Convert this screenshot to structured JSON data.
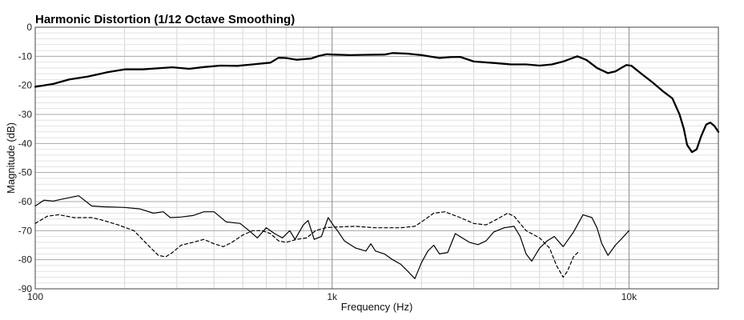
{
  "chart_data": {
    "type": "line",
    "title": "Harmonic Distortion (1/12 Octave Smoothing)",
    "xlabel": "Frequency (Hz)",
    "ylabel": "Magnitude (dB)",
    "xscale": "log",
    "xlim": [
      100,
      20000
    ],
    "ylim": [
      -90,
      0
    ],
    "grid": true,
    "x_ticks": [
      {
        "value": 100,
        "label": "100"
      },
      {
        "value": 1000,
        "label": "1k"
      },
      {
        "value": 10000,
        "label": "10k"
      }
    ],
    "y_ticks": [
      {
        "value": 0,
        "label": "0"
      },
      {
        "value": -10,
        "label": "-10"
      },
      {
        "value": -20,
        "label": "-20"
      },
      {
        "value": -30,
        "label": "-30"
      },
      {
        "value": -40,
        "label": "-40"
      },
      {
        "value": -50,
        "label": "-50"
      },
      {
        "value": -60,
        "label": "-60"
      },
      {
        "value": -70,
        "label": "-70"
      },
      {
        "value": -80,
        "label": "-80"
      },
      {
        "value": -90,
        "label": "-90"
      }
    ],
    "series": [
      {
        "style": "thick-solid",
        "color": "#000000",
        "points": [
          [
            100,
            -20.5
          ],
          [
            115,
            -19.5
          ],
          [
            130,
            -18
          ],
          [
            150,
            -17
          ],
          [
            175,
            -15.5
          ],
          [
            200,
            -14.5
          ],
          [
            230,
            -14.5
          ],
          [
            270,
            -14
          ],
          [
            290,
            -13.8
          ],
          [
            330,
            -14.3
          ],
          [
            370,
            -13.7
          ],
          [
            420,
            -13.2
          ],
          [
            480,
            -13.3
          ],
          [
            540,
            -12.8
          ],
          [
            580,
            -12.5
          ],
          [
            620,
            -12.2
          ],
          [
            660,
            -10.5
          ],
          [
            700,
            -10.6
          ],
          [
            760,
            -11.2
          ],
          [
            850,
            -10.8
          ],
          [
            900,
            -9.9
          ],
          [
            960,
            -9.3
          ],
          [
            1000,
            -9.4
          ],
          [
            1150,
            -9.6
          ],
          [
            1300,
            -9.5
          ],
          [
            1500,
            -9.4
          ],
          [
            1600,
            -8.9
          ],
          [
            1800,
            -9.1
          ],
          [
            2000,
            -9.6
          ],
          [
            2300,
            -10.6
          ],
          [
            2500,
            -10.3
          ],
          [
            2700,
            -10.2
          ],
          [
            3000,
            -11.8
          ],
          [
            3500,
            -12.3
          ],
          [
            4000,
            -12.8
          ],
          [
            4500,
            -12.8
          ],
          [
            5000,
            -13.2
          ],
          [
            5500,
            -12.8
          ],
          [
            6000,
            -11.8
          ],
          [
            6700,
            -10.0
          ],
          [
            7200,
            -11.3
          ],
          [
            7800,
            -14
          ],
          [
            8500,
            -15.8
          ],
          [
            9000,
            -15.2
          ],
          [
            9500,
            -13.8
          ],
          [
            9800,
            -13.0
          ],
          [
            10200,
            -13.3
          ],
          [
            11000,
            -16
          ],
          [
            12000,
            -19
          ],
          [
            13000,
            -22
          ],
          [
            14000,
            -24.5
          ],
          [
            14800,
            -30
          ],
          [
            15300,
            -35
          ],
          [
            15700,
            -40.5
          ],
          [
            16300,
            -43
          ],
          [
            16900,
            -42
          ],
          [
            17500,
            -37.5
          ],
          [
            18200,
            -33.5
          ],
          [
            18800,
            -32.8
          ],
          [
            19400,
            -34
          ],
          [
            20000,
            -36
          ]
        ]
      },
      {
        "style": "thin-solid",
        "color": "#000000",
        "points": [
          [
            100,
            -61.5
          ],
          [
            107,
            -59.5
          ],
          [
            115,
            -59.8
          ],
          [
            125,
            -59
          ],
          [
            140,
            -58
          ],
          [
            155,
            -61.5
          ],
          [
            170,
            -61.8
          ],
          [
            200,
            -62
          ],
          [
            225,
            -62.5
          ],
          [
            250,
            -64
          ],
          [
            270,
            -63.5
          ],
          [
            285,
            -65.5
          ],
          [
            310,
            -65.3
          ],
          [
            340,
            -64.8
          ],
          [
            370,
            -63.5
          ],
          [
            400,
            -63.5
          ],
          [
            440,
            -67
          ],
          [
            490,
            -67.5
          ],
          [
            525,
            -70
          ],
          [
            560,
            -72.5
          ],
          [
            600,
            -69
          ],
          [
            640,
            -71
          ],
          [
            680,
            -72.5
          ],
          [
            720,
            -70
          ],
          [
            750,
            -73
          ],
          [
            800,
            -68
          ],
          [
            830,
            -66.5
          ],
          [
            870,
            -73
          ],
          [
            920,
            -72
          ],
          [
            970,
            -65.5
          ],
          [
            1000,
            -67.5
          ],
          [
            1050,
            -70.5
          ],
          [
            1100,
            -73.5
          ],
          [
            1200,
            -76
          ],
          [
            1300,
            -77
          ],
          [
            1350,
            -74.5
          ],
          [
            1400,
            -77
          ],
          [
            1500,
            -78
          ],
          [
            1600,
            -80
          ],
          [
            1700,
            -81.5
          ],
          [
            1800,
            -84
          ],
          [
            1900,
            -86.5
          ],
          [
            2000,
            -81
          ],
          [
            2100,
            -77
          ],
          [
            2200,
            -75
          ],
          [
            2300,
            -78
          ],
          [
            2450,
            -77.5
          ],
          [
            2600,
            -71
          ],
          [
            2900,
            -74
          ],
          [
            3100,
            -74.8
          ],
          [
            3300,
            -73.5
          ],
          [
            3500,
            -70.5
          ],
          [
            3800,
            -69
          ],
          [
            4100,
            -68.5
          ],
          [
            4300,
            -72
          ],
          [
            4500,
            -78
          ],
          [
            4700,
            -80.5
          ],
          [
            5000,
            -76
          ],
          [
            5300,
            -73.5
          ],
          [
            5600,
            -72
          ],
          [
            6000,
            -75.5
          ],
          [
            6500,
            -70.5
          ],
          [
            7000,
            -64.5
          ],
          [
            7500,
            -65.5
          ],
          [
            7800,
            -69
          ],
          [
            8100,
            -74.5
          ],
          [
            8500,
            -78.5
          ],
          [
            9000,
            -75
          ],
          [
            9500,
            -72.5
          ],
          [
            10000,
            -70
          ]
        ]
      },
      {
        "style": "thin-dashed",
        "color": "#000000",
        "points": [
          [
            100,
            -67.5
          ],
          [
            110,
            -65
          ],
          [
            120,
            -64.5
          ],
          [
            135,
            -65.5
          ],
          [
            155,
            -65.5
          ],
          [
            170,
            -66.5
          ],
          [
            190,
            -68
          ],
          [
            215,
            -70
          ],
          [
            240,
            -75
          ],
          [
            260,
            -78.5
          ],
          [
            275,
            -79
          ],
          [
            290,
            -77.5
          ],
          [
            310,
            -75
          ],
          [
            340,
            -74
          ],
          [
            370,
            -73
          ],
          [
            400,
            -74.5
          ],
          [
            430,
            -75.5
          ],
          [
            460,
            -74
          ],
          [
            500,
            -71.5
          ],
          [
            540,
            -70
          ],
          [
            580,
            -70
          ],
          [
            620,
            -71
          ],
          [
            660,
            -73.5
          ],
          [
            700,
            -74
          ],
          [
            760,
            -73
          ],
          [
            820,
            -72.5
          ],
          [
            880,
            -70
          ],
          [
            950,
            -69
          ],
          [
            1000,
            -68.8
          ],
          [
            1200,
            -68.5
          ],
          [
            1400,
            -69
          ],
          [
            1700,
            -69
          ],
          [
            1900,
            -68.5
          ],
          [
            2000,
            -67
          ],
          [
            2200,
            -64
          ],
          [
            2400,
            -63.5
          ],
          [
            2700,
            -65.5
          ],
          [
            3000,
            -67.5
          ],
          [
            3300,
            -68
          ],
          [
            3600,
            -66
          ],
          [
            3900,
            -64
          ],
          [
            4100,
            -65
          ],
          [
            4500,
            -70
          ],
          [
            5000,
            -72.5
          ],
          [
            5400,
            -76
          ],
          [
            5700,
            -82
          ],
          [
            6000,
            -86
          ],
          [
            6200,
            -84
          ],
          [
            6500,
            -79
          ],
          [
            6800,
            -77
          ]
        ]
      }
    ]
  }
}
